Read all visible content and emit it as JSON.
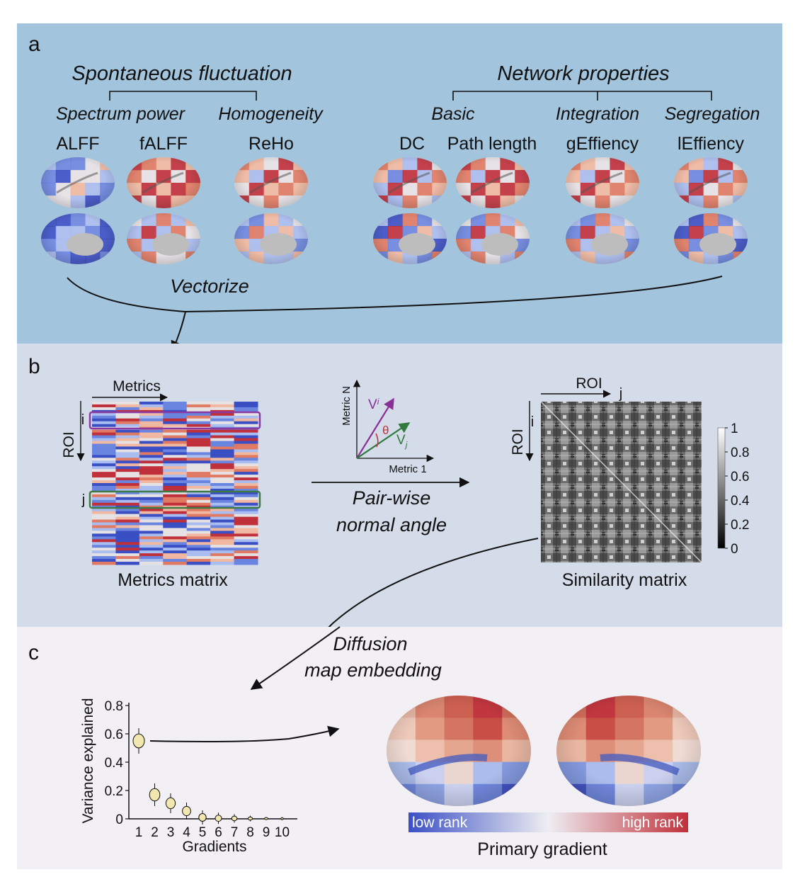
{
  "colors": {
    "panel_a_bg": "#a2c4dd",
    "panel_b_bg": "#d4dbe9",
    "panel_c_bg": "#f2eff5",
    "low_rank": "#3a4fc4",
    "high_rank": "#c0303a",
    "row_i_frame": "#8a3aa0",
    "row_j_frame": "#3e7a44",
    "vector_i": "#8a2f95",
    "vector_j": "#2f7a3c",
    "theta": "#c4333b"
  },
  "panel_a": {
    "letter": "a",
    "group1": {
      "title": "Spontaneous fluctuation",
      "sub1": "Spectrum power",
      "sub2": "Homogeneity",
      "metrics": [
        "ALFF",
        "fALFF",
        "ReHo"
      ]
    },
    "group2": {
      "title": "Network properties",
      "sub1": "Basic",
      "sub2": "Integration",
      "sub3": "Segregation",
      "metrics": [
        "DC",
        "Path length",
        "gEffiency",
        "lEffiency"
      ]
    },
    "vectorize": "Vectorize"
  },
  "panel_b": {
    "letter": "b",
    "metrics_axis": "Metrics",
    "roi_axis": "ROI",
    "row_i": "i",
    "row_j": "j",
    "metrics_caption": "Metrics matrix",
    "vector_axis_y": "Metric N",
    "vector_axis_x": "Metric 1",
    "vi_label": "V",
    "vi_sub": "i",
    "vj_label": "V",
    "vj_sub": "j",
    "theta": "θ",
    "arrow_label_1": "Pair-wise",
    "arrow_label_2": "normal angle",
    "sim_roi_top": "ROI",
    "sim_j": "j",
    "sim_roi_left": "ROI",
    "sim_i": "i",
    "colorbar_ticks": [
      "1",
      "0.8",
      "0.6",
      "0.4",
      "0.2",
      "0"
    ],
    "sim_caption": "Similarity matrix"
  },
  "panel_c": {
    "letter": "c",
    "diffusion_1": "Diffusion",
    "diffusion_2": "map embedding",
    "ylabel": "Variance explained",
    "xlabel": "Gradients",
    "colorbar_low": "low rank",
    "colorbar_high": "high rank",
    "brain_caption": "Primary gradient"
  },
  "chart_data": {
    "type": "scatter",
    "x": [
      1,
      2,
      3,
      4,
      5,
      6,
      7,
      8,
      9,
      10
    ],
    "y": [
      0.55,
      0.17,
      0.11,
      0.055,
      0.01,
      0.004,
      0.003,
      0.002,
      0.002,
      0.001
    ],
    "yticks": [
      "0",
      "0.2",
      "0.4",
      "0.6",
      "0.8"
    ],
    "xticks": [
      "1",
      "2",
      "3",
      "4",
      "5",
      "6",
      "7",
      "8",
      "9",
      "10"
    ],
    "ylim": [
      0,
      0.8
    ],
    "xlabel": "Gradients",
    "ylabel": "Variance explained"
  }
}
